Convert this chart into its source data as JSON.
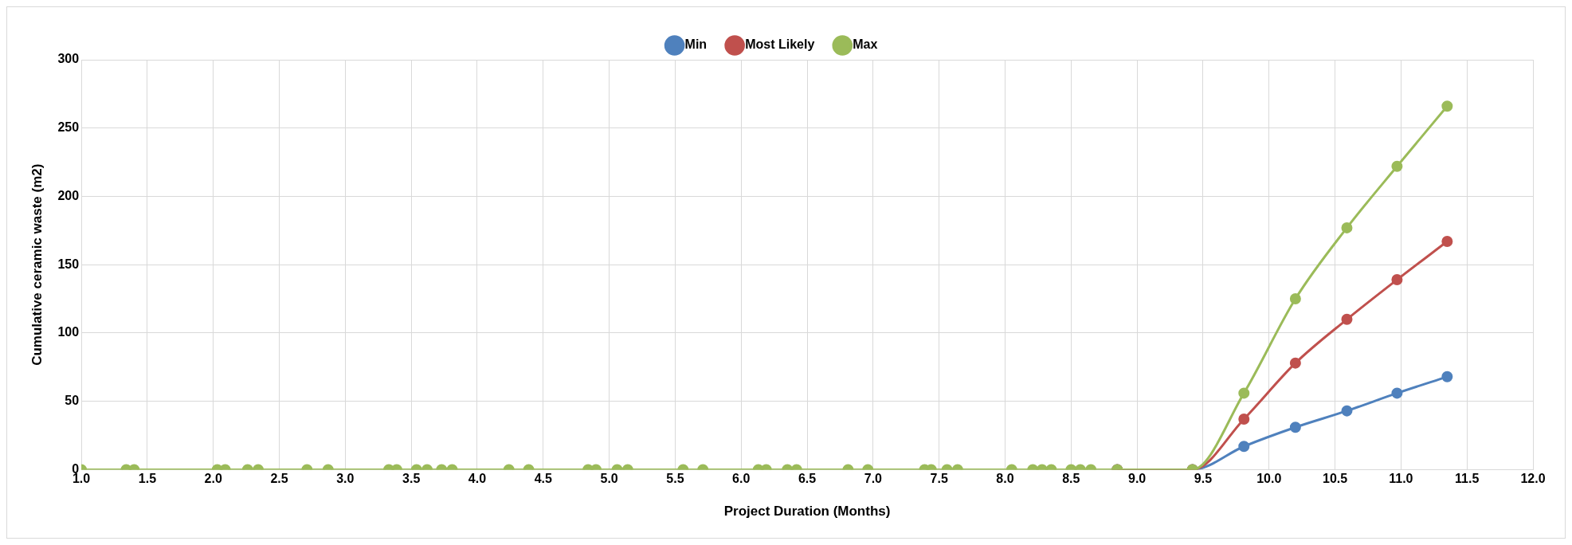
{
  "chart_data": {
    "type": "line",
    "xlabel": "Project Duration (Months)",
    "ylabel": "Cumulative ceramic waste (m2)",
    "x": [
      1.0,
      1.34,
      1.4,
      2.03,
      2.09,
      2.26,
      2.34,
      2.71,
      2.87,
      3.33,
      3.39,
      3.54,
      3.62,
      3.73,
      3.81,
      4.24,
      4.39,
      4.84,
      4.9,
      5.06,
      5.14,
      5.56,
      5.71,
      6.13,
      6.19,
      6.35,
      6.42,
      6.81,
      6.96,
      7.39,
      7.44,
      7.56,
      7.64,
      8.05,
      8.21,
      8.28,
      8.35,
      8.5,
      8.57,
      8.65,
      8.85,
      9.42,
      9.81,
      10.2,
      10.59,
      10.97,
      11.35
    ],
    "series": [
      {
        "name": "Min",
        "color": "#4f81bd",
        "values": [
          null,
          null,
          null,
          null,
          null,
          null,
          null,
          null,
          null,
          null,
          null,
          null,
          null,
          null,
          null,
          null,
          null,
          null,
          null,
          null,
          null,
          null,
          null,
          null,
          null,
          null,
          null,
          null,
          null,
          null,
          null,
          null,
          null,
          null,
          null,
          null,
          null,
          null,
          null,
          null,
          0,
          0,
          17,
          31,
          43,
          56,
          68
        ]
      },
      {
        "name": "Most Likely",
        "color": "#c0504d",
        "values": [
          null,
          null,
          null,
          null,
          null,
          null,
          null,
          null,
          null,
          null,
          null,
          null,
          null,
          null,
          null,
          null,
          null,
          null,
          null,
          null,
          null,
          null,
          null,
          null,
          null,
          null,
          null,
          null,
          null,
          null,
          null,
          null,
          null,
          null,
          null,
          null,
          null,
          null,
          null,
          null,
          0,
          0,
          37,
          78,
          110,
          139,
          167
        ]
      },
      {
        "name": "Max",
        "color": "#9bbb59",
        "values": [
          0,
          0,
          0,
          0,
          0,
          0,
          0,
          0,
          0,
          0,
          0,
          0,
          0,
          0,
          0,
          0,
          0,
          0,
          0,
          0,
          0,
          0,
          0,
          0,
          0,
          0,
          0,
          0,
          0,
          0,
          0,
          0,
          0,
          0,
          0,
          0,
          0,
          0,
          0,
          0,
          0,
          0,
          56,
          125,
          177,
          222,
          266
        ]
      }
    ],
    "xlim": [
      1.0,
      12.0
    ],
    "xticks": [
      {
        "value": 1,
        "label": "1.0"
      },
      {
        "value": 1.5,
        "label": "1.5"
      },
      {
        "value": 2,
        "label": "2.0"
      },
      {
        "value": 2.5,
        "label": "2.5"
      },
      {
        "value": 3,
        "label": "3.0"
      },
      {
        "value": 3.5,
        "label": "3.5"
      },
      {
        "value": 4,
        "label": "4.0"
      },
      {
        "value": 4.5,
        "label": "4.5"
      },
      {
        "value": 5,
        "label": "5.0"
      },
      {
        "value": 5.5,
        "label": "5.5"
      },
      {
        "value": 6,
        "label": "6.0"
      },
      {
        "value": 6.5,
        "label": "6.5"
      },
      {
        "value": 7,
        "label": "7.0"
      },
      {
        "value": 7.5,
        "label": "7.5"
      },
      {
        "value": 8,
        "label": "8.0"
      },
      {
        "value": 8.5,
        "label": "8.5"
      },
      {
        "value": 9,
        "label": "9.0"
      },
      {
        "value": 9.5,
        "label": "9.5"
      },
      {
        "value": 10,
        "label": "10.0"
      },
      {
        "value": 10.5,
        "label": "10.5"
      },
      {
        "value": 11,
        "label": "11.0"
      },
      {
        "value": 11.5,
        "label": "11.5"
      },
      {
        "value": 12,
        "label": "12.0"
      }
    ],
    "ylim": [
      0,
      300
    ],
    "yticks": [
      0,
      50,
      100,
      150,
      200,
      250,
      300
    ],
    "grid": true,
    "legend": "top",
    "marker": "circle",
    "line_style": "solid"
  }
}
